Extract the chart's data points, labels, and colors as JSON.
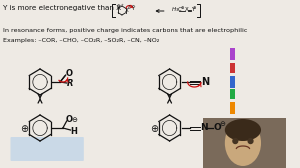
{
  "bg_color": "#eeeae4",
  "text_color": "#111111",
  "title_line": "Y is more electronegative than X",
  "line2": "In resonance forms, positive charge indicates carbons that are electrophilic",
  "line3": "Examples: –COR, –CHO, –CO₂R, –SO₂R, –CN, –NO₂",
  "title_fontsize": 5.2,
  "body_fontsize": 4.6,
  "example_fontsize": 4.6,
  "red": "#cc1111",
  "black": "#111111",
  "side_bars": [
    "#aa44cc",
    "#cc3333",
    "#3366cc",
    "#22aa44",
    "#ee8800"
  ],
  "webcam_face": "#c9a87c",
  "webcam_bg": "#7a6a5a",
  "webcam_hair": "#3a2a1a"
}
